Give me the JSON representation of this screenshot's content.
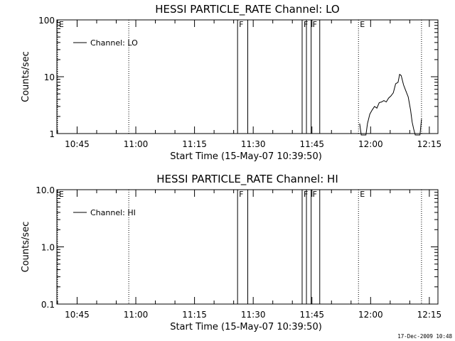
{
  "footer": {
    "timestamp": "17-Dec-2009 10:48"
  },
  "chart_data": [
    {
      "type": "line",
      "title": "HESSI PARTICLE_RATE Channel: LO",
      "xlabel": "Start Time (15-May-07 10:39:50)",
      "ylabel": "Counts/sec",
      "yscale": "log",
      "ylim": [
        1,
        100
      ],
      "y_ticks": [
        1,
        10,
        100
      ],
      "y_tick_labels": [
        "1",
        "10",
        "100"
      ],
      "xlim_minutes_after_10_00": [
        39.83,
        77.2
      ],
      "x_ticks_minutes_after_10_00": [
        45,
        60,
        75,
        90,
        105,
        120,
        135
      ],
      "x_tick_labels": [
        "10:45",
        "11:00",
        "11:15",
        "11:30",
        "11:45",
        "12:00",
        "12:15"
      ],
      "legend": {
        "label": "Channel: LO",
        "position": "top-left"
      },
      "flags": [
        {
          "label": "E",
          "t": 40.0,
          "style": "dotted"
        },
        {
          "label": "",
          "t": 58.2,
          "style": "dotted"
        },
        {
          "label": "F",
          "t": 86.0,
          "style": "solid"
        },
        {
          "label": "",
          "t": 88.6,
          "style": "solid"
        },
        {
          "label": "F",
          "t": 102.5,
          "style": "solid"
        },
        {
          "label": "",
          "t": 103.6,
          "style": "solid"
        },
        {
          "label": "F",
          "t": 104.8,
          "style": "solid"
        },
        {
          "label": "",
          "t": 107.0,
          "style": "solid"
        },
        {
          "label": "E",
          "t": 116.9,
          "style": "dotted"
        },
        {
          "label": "",
          "t": 133.0,
          "style": "dotted"
        }
      ],
      "series": [
        {
          "name": "",
          "x": [
            117.2,
            117.6,
            118.0,
            118.8,
            119.2,
            119.8,
            120.4,
            121.0,
            121.6,
            122.2,
            122.8,
            123.4,
            124.0,
            124.6,
            125.2,
            125.8,
            126.4,
            127.0,
            127.4,
            127.8,
            128.4,
            129.0,
            129.6,
            130.2,
            130.6,
            131.0,
            131.4,
            132.6,
            133.0
          ],
          "y": [
            1.5,
            0.8,
            0.8,
            0.8,
            1.5,
            2.2,
            2.6,
            3.0,
            2.8,
            3.5,
            3.6,
            3.8,
            3.6,
            4.2,
            4.6,
            5.2,
            7.5,
            8.0,
            11.0,
            10.5,
            7.2,
            5.6,
            4.4,
            2.6,
            1.6,
            1.2,
            0.8,
            0.8,
            1.8
          ]
        }
      ]
    },
    {
      "type": "line",
      "title": "HESSI PARTICLE_RATE Channel: HI",
      "xlabel": "Start Time (15-May-07 10:39:50)",
      "ylabel": "Counts/sec",
      "yscale": "log",
      "ylim": [
        0.1,
        10
      ],
      "y_ticks": [
        0.1,
        1,
        10
      ],
      "y_tick_labels": [
        "0.1",
        "1.0",
        "10.0"
      ],
      "xlim_minutes_after_10_00": [
        39.83,
        77.2
      ],
      "x_ticks_minutes_after_10_00": [
        45,
        60,
        75,
        90,
        105,
        120,
        135
      ],
      "x_tick_labels": [
        "10:45",
        "11:00",
        "11:15",
        "11:30",
        "11:45",
        "12:00",
        "12:15"
      ],
      "legend": {
        "label": "Channel: HI",
        "position": "top-left"
      },
      "flags": [
        {
          "label": "E",
          "t": 40.0,
          "style": "dotted"
        },
        {
          "label": "",
          "t": 58.2,
          "style": "dotted"
        },
        {
          "label": "F",
          "t": 86.0,
          "style": "solid"
        },
        {
          "label": "",
          "t": 88.6,
          "style": "solid"
        },
        {
          "label": "F",
          "t": 102.5,
          "style": "solid"
        },
        {
          "label": "",
          "t": 103.6,
          "style": "solid"
        },
        {
          "label": "F",
          "t": 104.8,
          "style": "solid"
        },
        {
          "label": "",
          "t": 107.0,
          "style": "solid"
        },
        {
          "label": "E",
          "t": 116.9,
          "style": "dotted"
        },
        {
          "label": "",
          "t": 133.0,
          "style": "dotted"
        }
      ],
      "series": []
    }
  ]
}
